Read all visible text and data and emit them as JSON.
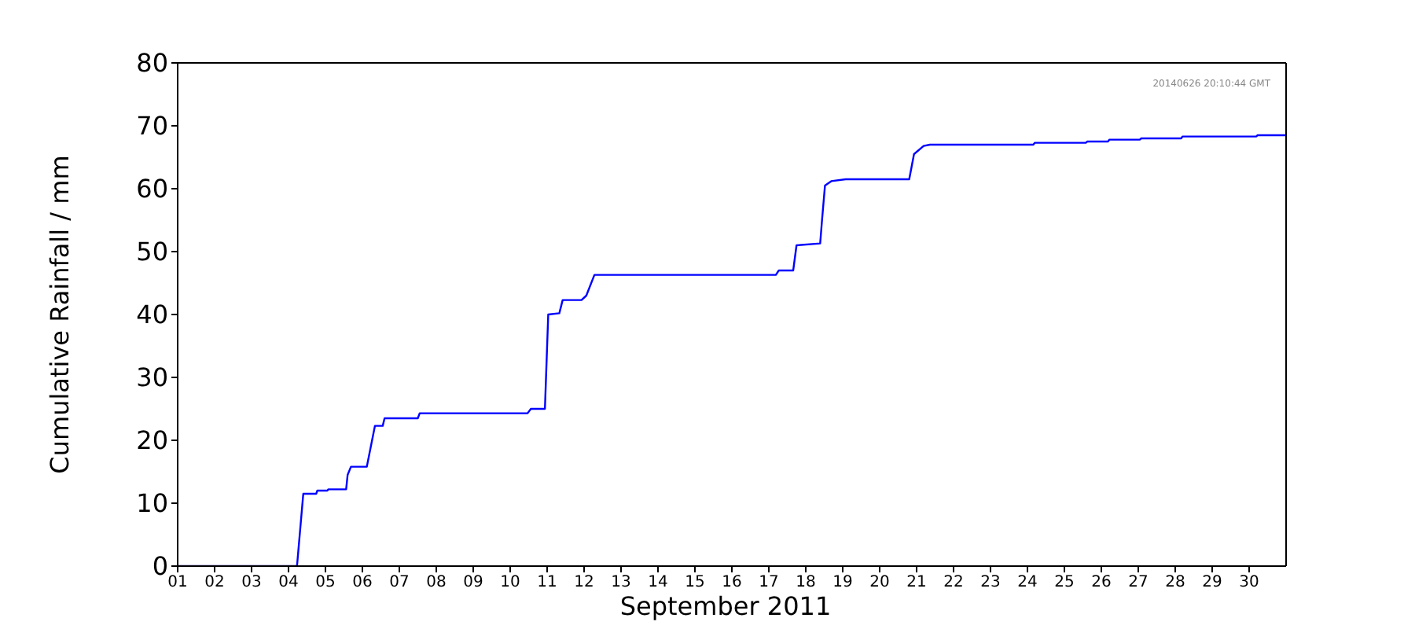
{
  "chart_data": {
    "type": "line",
    "xlabel": "September 2011",
    "ylabel": "Cumulative Rainfall / mm",
    "annotations": [
      "20140626 20:10:44 GMT"
    ],
    "x": [
      1,
      4.23,
      4.4,
      4.75,
      4.78,
      5.05,
      5.08,
      5.56,
      5.6,
      5.69,
      6.12,
      6.34,
      6.55,
      6.6,
      7.5,
      7.55,
      10.47,
      10.56,
      10.94,
      11.03,
      11.33,
      11.42,
      11.93,
      12.06,
      12.28,
      17.19,
      17.27,
      17.66,
      17.75,
      18.39,
      18.44,
      18.52,
      18.69,
      19.08,
      20.8,
      20.93,
      21.19,
      21.36,
      24.16,
      24.2,
      25.58,
      25.62,
      26.18,
      26.22,
      27.04,
      27.08,
      28.16,
      28.2,
      30.19,
      30.23,
      31
    ],
    "series": [
      {
        "color": "#0000ff",
        "values": [
          0,
          0,
          11.5,
          11.5,
          12,
          12,
          12.2,
          12.2,
          14.5,
          15.8,
          15.8,
          22.3,
          22.3,
          23.5,
          23.5,
          24.3,
          24.3,
          25,
          25,
          40,
          40.2,
          42.3,
          42.3,
          43,
          46.3,
          46.3,
          47,
          47,
          51,
          51.3,
          55,
          60.5,
          61.2,
          61.5,
          61.5,
          65.5,
          66.8,
          67,
          67,
          67.3,
          67.3,
          67.5,
          67.5,
          67.8,
          67.8,
          68,
          68,
          68.3,
          68.3,
          68.5,
          68.5
        ]
      }
    ],
    "xlim": [
      1,
      31
    ],
    "xticks": [
      {
        "value": 1,
        "label": "01"
      },
      {
        "value": 2,
        "label": "02"
      },
      {
        "value": 3,
        "label": "03"
      },
      {
        "value": 4,
        "label": "04"
      },
      {
        "value": 5,
        "label": "05"
      },
      {
        "value": 6,
        "label": "06"
      },
      {
        "value": 7,
        "label": "07"
      },
      {
        "value": 8,
        "label": "08"
      },
      {
        "value": 9,
        "label": "09"
      },
      {
        "value": 10,
        "label": "10"
      },
      {
        "value": 11,
        "label": "11"
      },
      {
        "value": 12,
        "label": "12"
      },
      {
        "value": 13,
        "label": "13"
      },
      {
        "value": 14,
        "label": "14"
      },
      {
        "value": 15,
        "label": "15"
      },
      {
        "value": 16,
        "label": "16"
      },
      {
        "value": 17,
        "label": "17"
      },
      {
        "value": 18,
        "label": "18"
      },
      {
        "value": 19,
        "label": "19"
      },
      {
        "value": 20,
        "label": "20"
      },
      {
        "value": 21,
        "label": "21"
      },
      {
        "value": 22,
        "label": "22"
      },
      {
        "value": 23,
        "label": "23"
      },
      {
        "value": 24,
        "label": "24"
      },
      {
        "value": 25,
        "label": "25"
      },
      {
        "value": 26,
        "label": "26"
      },
      {
        "value": 27,
        "label": "27"
      },
      {
        "value": 28,
        "label": "28"
      },
      {
        "value": 29,
        "label": "29"
      },
      {
        "value": 30,
        "label": "30"
      }
    ],
    "ylim": [
      0,
      80
    ],
    "yticks": [
      0,
      10,
      20,
      30,
      40,
      50,
      60,
      70,
      80
    ],
    "legend": false,
    "marker": "none",
    "line_style": "solid"
  }
}
